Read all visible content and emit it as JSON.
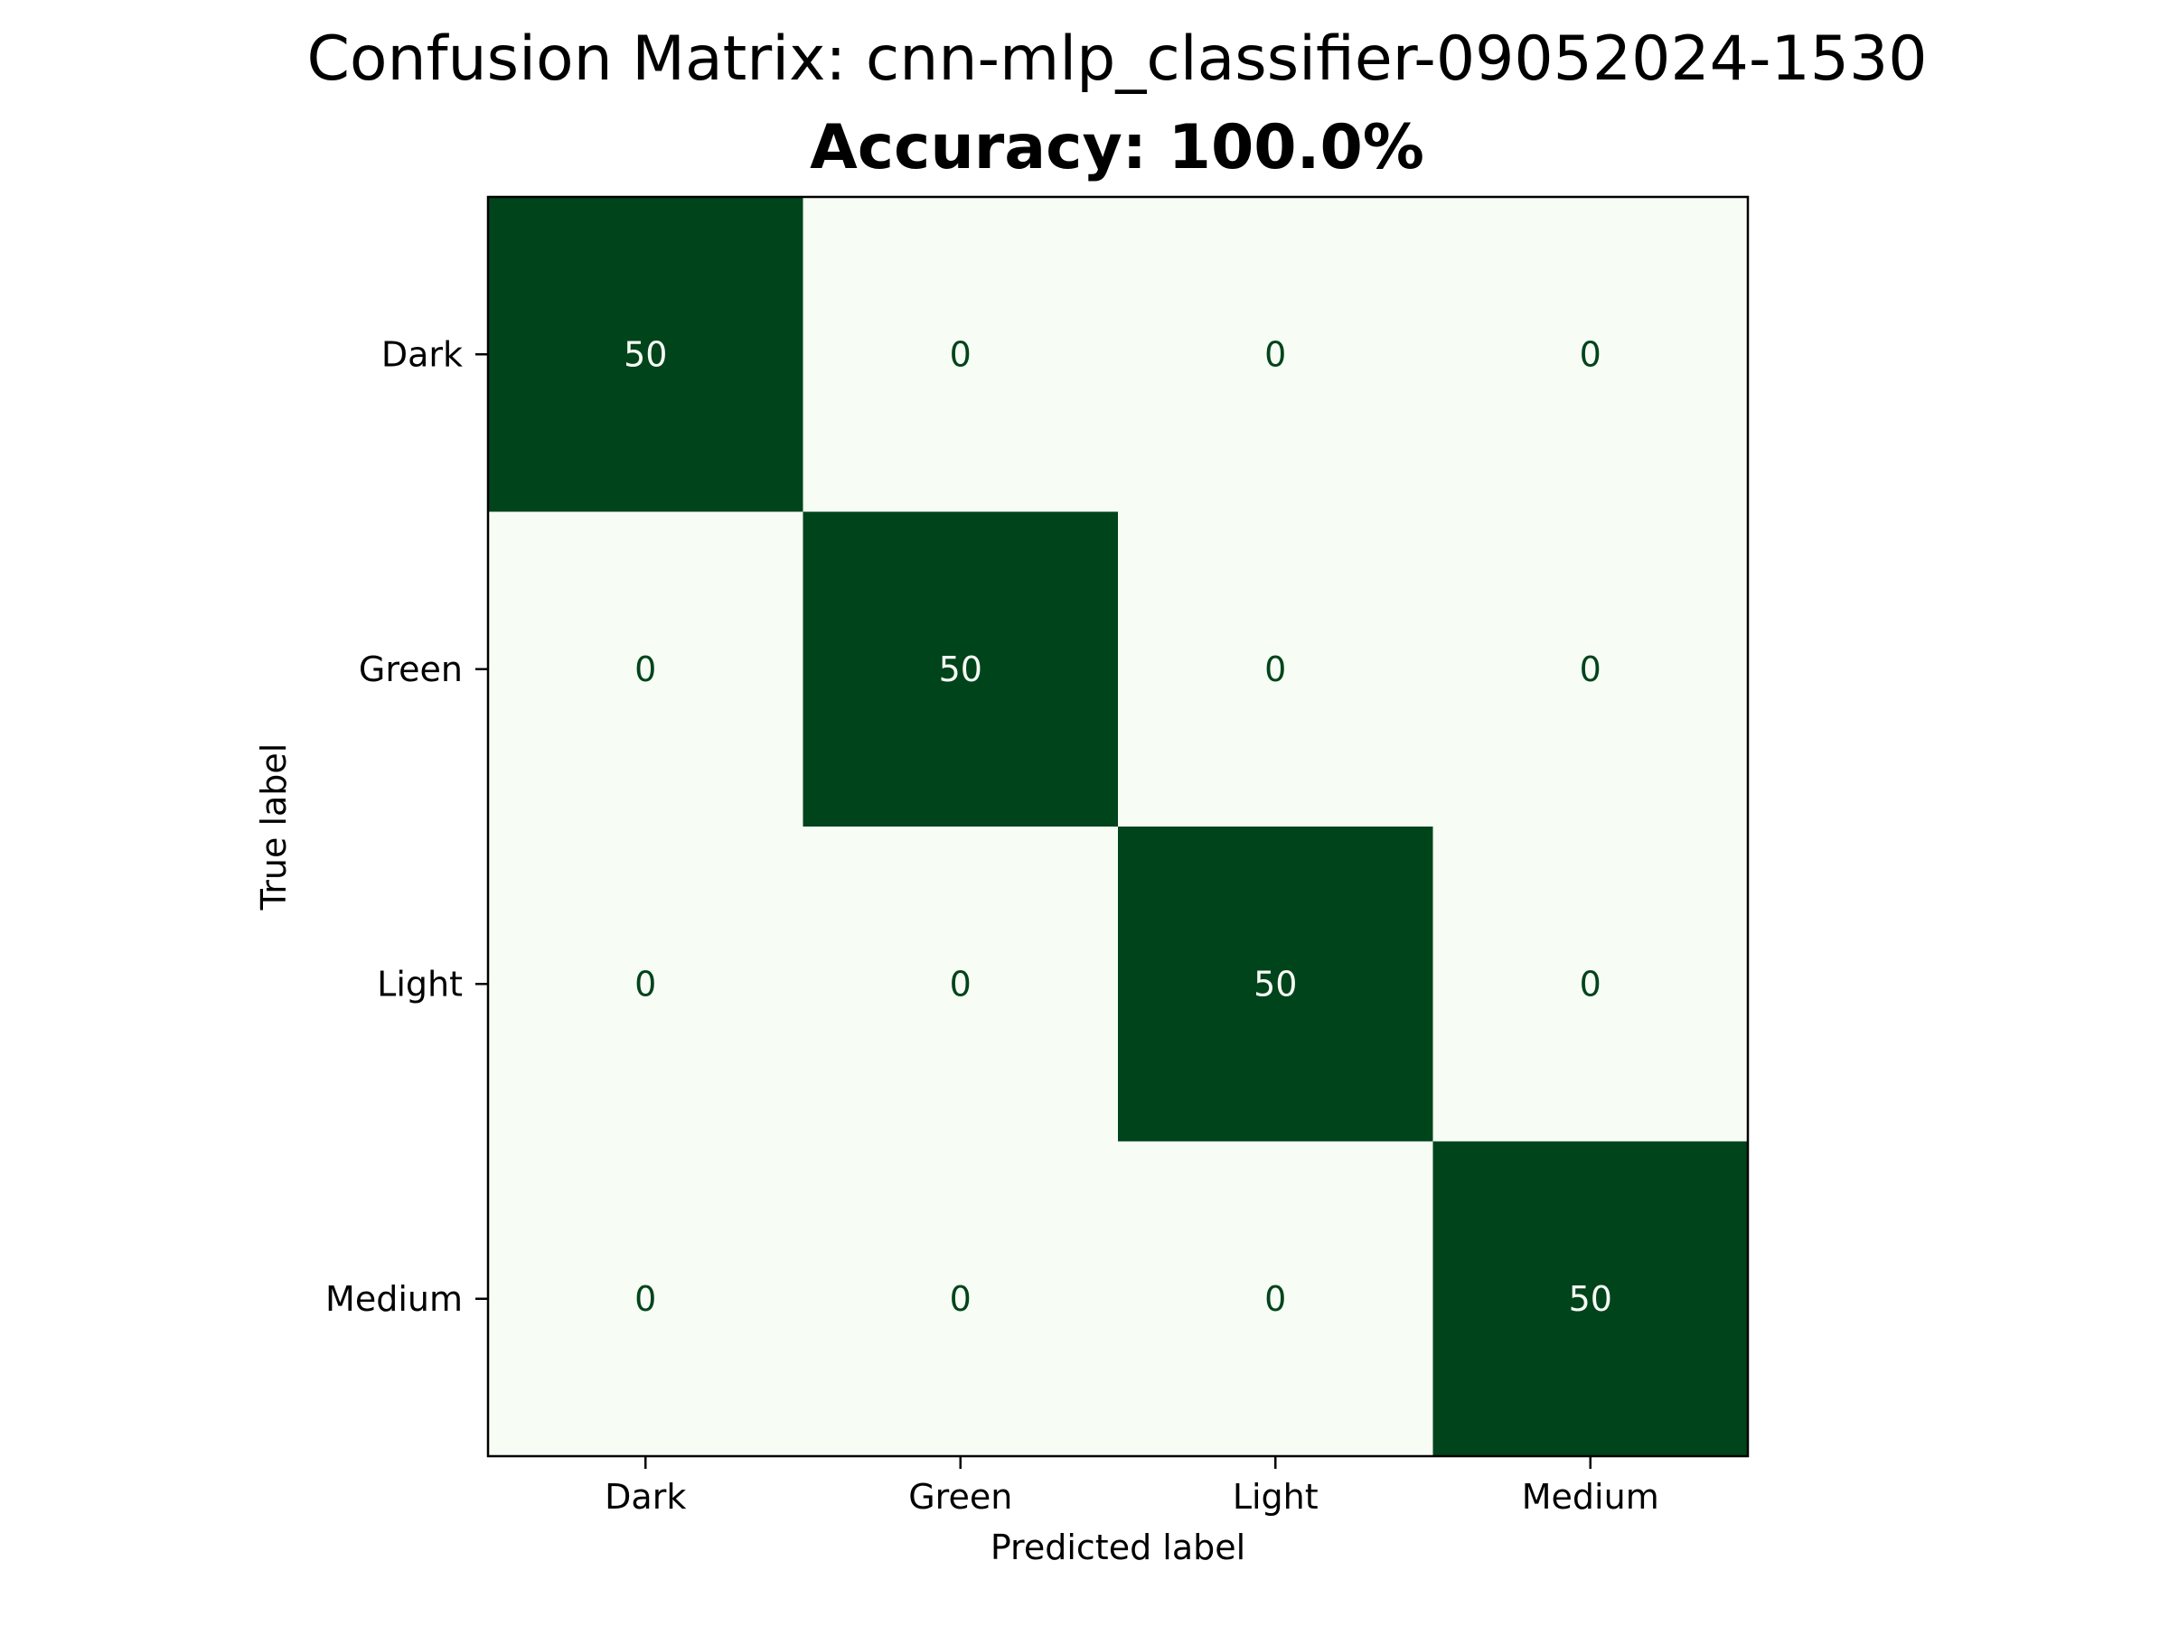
{
  "chart_data": {
    "type": "heatmap",
    "title": "Confusion Matrix: cnn-mlp_classifier-09052024-1530",
    "subtitle": "Accuracy: 100.0%",
    "xlabel": "Predicted label",
    "ylabel": "True label",
    "x_categories": [
      "Dark",
      "Green",
      "Light",
      "Medium"
    ],
    "y_categories": [
      "Dark",
      "Green",
      "Light",
      "Medium"
    ],
    "matrix": [
      [
        50,
        0,
        0,
        0
      ],
      [
        0,
        50,
        0,
        0
      ],
      [
        0,
        0,
        50,
        0
      ],
      [
        0,
        0,
        0,
        50
      ]
    ],
    "value_range": [
      0,
      50
    ],
    "colormap": "Greens",
    "colors": {
      "low": "#f7fcf5",
      "high": "#00441b",
      "text_on_dark": "#f7fcf5",
      "text_on_light": "#00441b"
    },
    "grid": false,
    "colorbar": false
  }
}
